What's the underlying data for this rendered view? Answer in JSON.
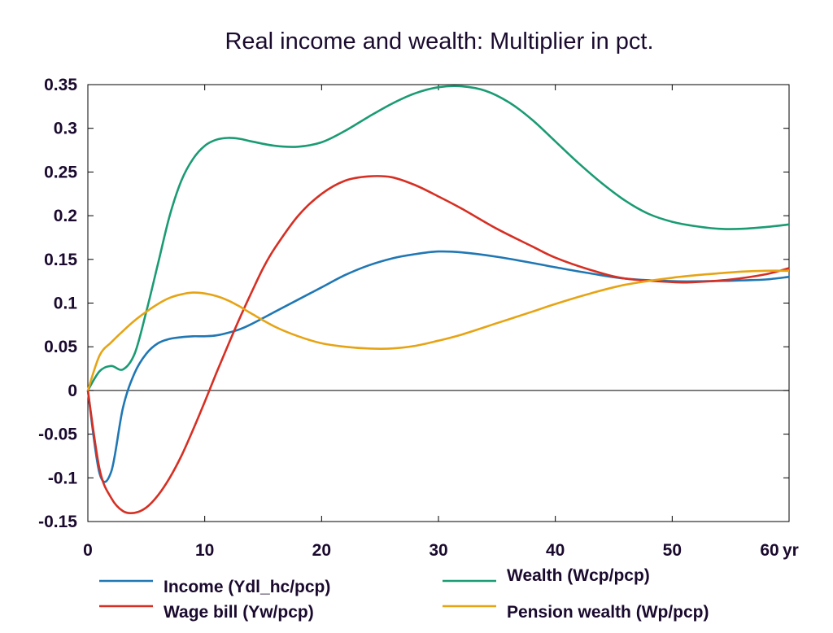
{
  "chart_data": {
    "type": "line",
    "title": "Real income and wealth: Multiplier in pct.",
    "xlabel": "",
    "ylabel": "",
    "x_unit_label": "yr",
    "xlim": [
      0,
      60
    ],
    "ylim": [
      -0.15,
      0.35
    ],
    "x_ticks": [
      0,
      10,
      20,
      30,
      40,
      50,
      60
    ],
    "x_tick_labels": [
      "0",
      "10",
      "20",
      "30",
      "40",
      "50",
      "60"
    ],
    "y_ticks": [
      -0.15,
      -0.1,
      -0.05,
      0,
      0.05,
      0.1,
      0.15,
      0.2,
      0.25,
      0.3,
      0.35
    ],
    "y_tick_labels": [
      "-0.15",
      "-0.1",
      "-0.05",
      "0",
      "0.05",
      "0.1",
      "0.15",
      "0.2",
      "0.25",
      "0.3",
      "0.35"
    ],
    "grid": false,
    "zero_line": true,
    "legend_position": "bottom",
    "series": [
      {
        "name": "Income (Ydl_hc/pcp)",
        "color": "#1f77b4",
        "points": [
          [
            0,
            0
          ],
          [
            1,
            -0.095
          ],
          [
            2,
            -0.093
          ],
          [
            3,
            -0.02
          ],
          [
            4,
            0.02
          ],
          [
            5,
            0.042
          ],
          [
            6,
            0.054
          ],
          [
            7,
            0.059
          ],
          [
            8,
            0.061
          ],
          [
            9,
            0.062
          ],
          [
            10,
            0.062
          ],
          [
            11,
            0.063
          ],
          [
            12,
            0.066
          ],
          [
            13,
            0.07
          ],
          [
            14,
            0.076
          ],
          [
            16,
            0.09
          ],
          [
            18,
            0.104
          ],
          [
            20,
            0.118
          ],
          [
            22,
            0.132
          ],
          [
            24,
            0.143
          ],
          [
            26,
            0.151
          ],
          [
            28,
            0.156
          ],
          [
            30,
            0.159
          ],
          [
            32,
            0.158
          ],
          [
            35,
            0.153
          ],
          [
            38,
            0.146
          ],
          [
            40,
            0.141
          ],
          [
            43,
            0.134
          ],
          [
            46,
            0.128
          ],
          [
            50,
            0.125
          ],
          [
            53,
            0.125
          ],
          [
            56,
            0.126
          ],
          [
            58,
            0.127
          ],
          [
            60,
            0.13
          ]
        ]
      },
      {
        "name": "Wealth (Wcp/pcp)",
        "color": "#1a9b73",
        "points": [
          [
            0,
            0
          ],
          [
            1,
            0.022
          ],
          [
            2,
            0.028
          ],
          [
            3,
            0.024
          ],
          [
            4,
            0.042
          ],
          [
            5,
            0.09
          ],
          [
            6,
            0.145
          ],
          [
            7,
            0.2
          ],
          [
            8,
            0.24
          ],
          [
            9,
            0.265
          ],
          [
            10,
            0.28
          ],
          [
            11,
            0.287
          ],
          [
            12,
            0.289
          ],
          [
            13,
            0.288
          ],
          [
            14,
            0.285
          ],
          [
            16,
            0.28
          ],
          [
            18,
            0.279
          ],
          [
            20,
            0.284
          ],
          [
            22,
            0.297
          ],
          [
            24,
            0.313
          ],
          [
            26,
            0.328
          ],
          [
            28,
            0.34
          ],
          [
            30,
            0.347
          ],
          [
            32,
            0.348
          ],
          [
            34,
            0.343
          ],
          [
            36,
            0.33
          ],
          [
            38,
            0.31
          ],
          [
            40,
            0.285
          ],
          [
            42,
            0.26
          ],
          [
            44,
            0.237
          ],
          [
            46,
            0.217
          ],
          [
            48,
            0.202
          ],
          [
            50,
            0.193
          ],
          [
            52,
            0.188
          ],
          [
            54,
            0.185
          ],
          [
            56,
            0.185
          ],
          [
            58,
            0.187
          ],
          [
            60,
            0.19
          ]
        ]
      },
      {
        "name": "Wage bill (Yw/pcp)",
        "color": "#d62f23",
        "points": [
          [
            0,
            0
          ],
          [
            1,
            -0.09
          ],
          [
            2,
            -0.123
          ],
          [
            3,
            -0.138
          ],
          [
            4,
            -0.14
          ],
          [
            5,
            -0.134
          ],
          [
            6,
            -0.12
          ],
          [
            7,
            -0.1
          ],
          [
            8,
            -0.075
          ],
          [
            9,
            -0.045
          ],
          [
            10,
            -0.013
          ],
          [
            11,
            0.02
          ],
          [
            12,
            0.052
          ],
          [
            13,
            0.083
          ],
          [
            14,
            0.112
          ],
          [
            15,
            0.14
          ],
          [
            16,
            0.163
          ],
          [
            18,
            0.2
          ],
          [
            20,
            0.225
          ],
          [
            22,
            0.24
          ],
          [
            24,
            0.245
          ],
          [
            26,
            0.244
          ],
          [
            28,
            0.235
          ],
          [
            30,
            0.222
          ],
          [
            32,
            0.208
          ],
          [
            35,
            0.185
          ],
          [
            38,
            0.165
          ],
          [
            40,
            0.152
          ],
          [
            43,
            0.138
          ],
          [
            46,
            0.128
          ],
          [
            50,
            0.124
          ],
          [
            52,
            0.124
          ],
          [
            55,
            0.127
          ],
          [
            58,
            0.133
          ],
          [
            60,
            0.14
          ]
        ]
      },
      {
        "name": "Pension wealth (Wp/pcp)",
        "color": "#e6a414",
        "points": [
          [
            0,
            0
          ],
          [
            1,
            0.04
          ],
          [
            2,
            0.055
          ],
          [
            3,
            0.068
          ],
          [
            4,
            0.08
          ],
          [
            5,
            0.09
          ],
          [
            6,
            0.099
          ],
          [
            7,
            0.106
          ],
          [
            8,
            0.11
          ],
          [
            9,
            0.112
          ],
          [
            10,
            0.111
          ],
          [
            11,
            0.108
          ],
          [
            12,
            0.103
          ],
          [
            13,
            0.096
          ],
          [
            14,
            0.088
          ],
          [
            16,
            0.073
          ],
          [
            18,
            0.062
          ],
          [
            20,
            0.054
          ],
          [
            22,
            0.05
          ],
          [
            24,
            0.048
          ],
          [
            26,
            0.048
          ],
          [
            28,
            0.051
          ],
          [
            30,
            0.057
          ],
          [
            32,
            0.064
          ],
          [
            35,
            0.077
          ],
          [
            38,
            0.09
          ],
          [
            40,
            0.099
          ],
          [
            43,
            0.111
          ],
          [
            46,
            0.121
          ],
          [
            50,
            0.129
          ],
          [
            53,
            0.133
          ],
          [
            56,
            0.136
          ],
          [
            58,
            0.137
          ],
          [
            60,
            0.137
          ]
        ]
      }
    ]
  }
}
